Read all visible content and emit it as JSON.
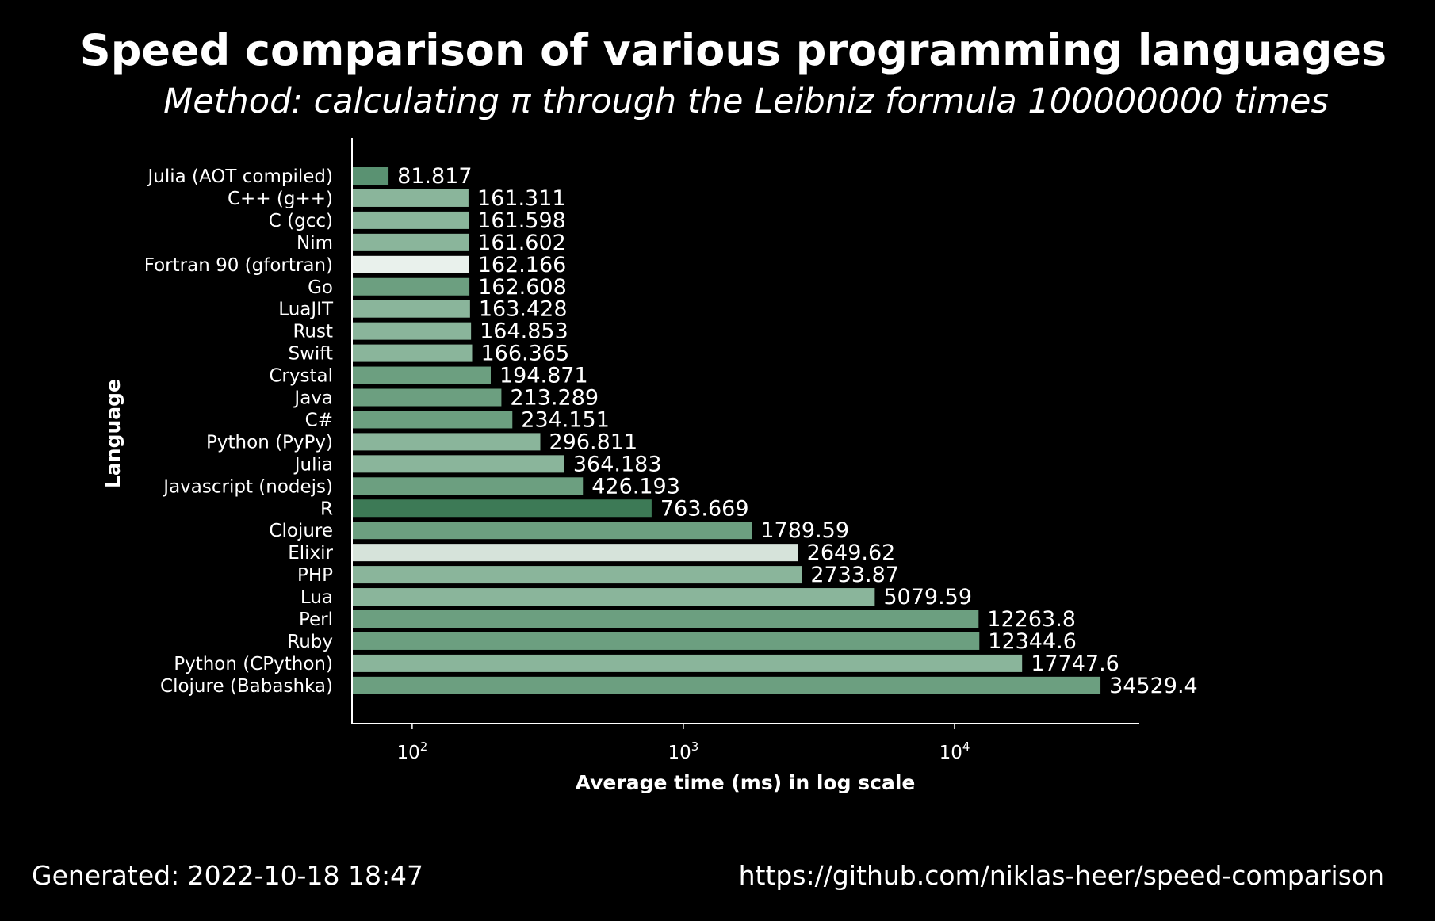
{
  "chart_data": {
    "type": "bar",
    "orientation": "horizontal",
    "title": "Speed comparison of various programming languages",
    "subtitle": "Method: calculating π through the Leibniz formula 100000000 times",
    "xlabel": "Average time (ms) in log scale",
    "ylabel": "Language",
    "xscale": "log",
    "xlim": [
      60,
      48000
    ],
    "xticks": [
      {
        "value": 100,
        "base": "10",
        "exp": "2"
      },
      {
        "value": 1000,
        "base": "10",
        "exp": "3"
      },
      {
        "value": 10000,
        "base": "10",
        "exp": "4"
      }
    ],
    "grid": false,
    "categories": [
      "Julia (AOT compiled)",
      "C++ (g++)",
      "C (gcc)",
      "Nim",
      "Fortran 90 (gfortran)",
      "Go",
      "LuaJIT",
      "Rust",
      "Swift",
      "Crystal",
      "Java",
      "C#",
      "Python (PyPy)",
      "Julia",
      "Javascript (nodejs)",
      "R",
      "Clojure",
      "Elixir",
      "PHP",
      "Lua",
      "Perl",
      "Ruby",
      "Python (CPython)",
      "Clojure (Babashka)"
    ],
    "values": [
      81.817,
      161.311,
      161.598,
      161.602,
      162.166,
      162.608,
      163.428,
      164.853,
      166.365,
      194.871,
      213.289,
      234.151,
      296.811,
      364.183,
      426.193,
      763.669,
      1789.59,
      2649.62,
      2733.87,
      5079.59,
      12263.8,
      12344.6,
      17747.6,
      34529.4
    ],
    "value_labels": [
      "81.817",
      "161.311",
      "161.598",
      "161.602",
      "162.166",
      "162.608",
      "163.428",
      "164.853",
      "166.365",
      "194.871",
      "213.289",
      "234.151",
      "296.811",
      "364.183",
      "426.193",
      "763.669",
      "1789.59",
      "2649.62",
      "2733.87",
      "5079.59",
      "12263.8",
      "12344.6",
      "17747.6",
      "34529.4"
    ],
    "bar_colors": [
      "#5a9272",
      "#8ab59b",
      "#8ab59b",
      "#8ab59b",
      "#e9f1ec",
      "#6c9f80",
      "#8ab59b",
      "#8ab59b",
      "#8ab59b",
      "#6c9f80",
      "#6c9f80",
      "#6c9f80",
      "#8ab59b",
      "#8ab59b",
      "#6c9f80",
      "#3d7a56",
      "#6c9f80",
      "#d6e3da",
      "#8ab59b",
      "#8ab59b",
      "#6c9f80",
      "#6c9f80",
      "#8ab59b",
      "#6c9f80"
    ]
  },
  "footer": {
    "generated": "Generated: 2022-10-18 18:47",
    "url": "https://github.com/niklas-heer/speed-comparison"
  },
  "colors": {
    "background": "#000000",
    "text": "#ffffff",
    "axis": "#ffffff"
  }
}
